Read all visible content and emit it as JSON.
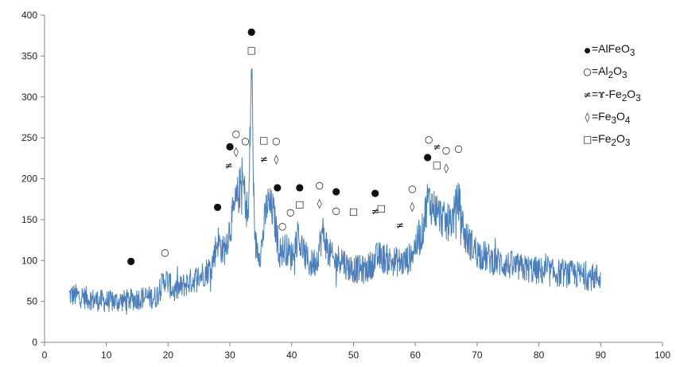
{
  "chart_data": {
    "type": "line",
    "title": "",
    "xlabel": "",
    "ylabel": "",
    "xlim": [
      0,
      100
    ],
    "ylim": [
      0,
      400
    ],
    "x_ticks": [
      "0",
      "10",
      "20",
      "30",
      "40",
      "50",
      "60",
      "70",
      "80",
      "90",
      "100"
    ],
    "y_ticks": [
      "0",
      "50",
      "100",
      "150",
      "200",
      "250",
      "300",
      "350",
      "400"
    ],
    "grid": false,
    "legend_position": "top-right",
    "line_color": "#4a7ebb",
    "series": [
      {
        "x": [
          4,
          6,
          8,
          10,
          12,
          14,
          16,
          18,
          19.5,
          21,
          23,
          25,
          27,
          28,
          29,
          30,
          31,
          32,
          33,
          33.5,
          34,
          35,
          36,
          37,
          38,
          39,
          40,
          41,
          42,
          43,
          44,
          45,
          46,
          47,
          48,
          49,
          50,
          52,
          54,
          56,
          58,
          59,
          60,
          61,
          62,
          63,
          64,
          65,
          66,
          67,
          68,
          70,
          72,
          74,
          76,
          78,
          80,
          82,
          84,
          86,
          88,
          90
        ],
        "y": [
          58,
          56,
          52,
          50,
          50,
          52,
          55,
          55,
          78,
          62,
          72,
          80,
          92,
          125,
          110,
          140,
          170,
          200,
          150,
          345,
          120,
          110,
          170,
          160,
          110,
          115,
          105,
          130,
          108,
          95,
          100,
          135,
          110,
          98,
          105,
          92,
          90,
          88,
          105,
          100,
          97,
          102,
          118,
          130,
          175,
          165,
          155,
          145,
          150,
          175,
          130,
          110,
          102,
          97,
          92,
          90,
          87,
          85,
          84,
          83,
          80,
          80
        ]
      }
    ],
    "annotations": [
      {
        "symbol": "●",
        "x": 14,
        "y": 100
      },
      {
        "symbol": "○",
        "x": 19.5,
        "y": 110
      },
      {
        "symbol": "●",
        "x": 28,
        "y": 166
      },
      {
        "symbol": "●",
        "x": 30,
        "y": 240
      },
      {
        "symbol": "≠",
        "x": 29.8,
        "y": 216
      },
      {
        "symbol": "○",
        "x": 31,
        "y": 255
      },
      {
        "symbol": "◊",
        "x": 31,
        "y": 233
      },
      {
        "symbol": "○",
        "x": 32.5,
        "y": 246
      },
      {
        "symbol": "●",
        "x": 33.5,
        "y": 380
      },
      {
        "symbol": "□",
        "x": 33.5,
        "y": 357
      },
      {
        "symbol": "□",
        "x": 35.5,
        "y": 247
      },
      {
        "symbol": "≠",
        "x": 35.5,
        "y": 224
      },
      {
        "symbol": "○",
        "x": 37.5,
        "y": 246
      },
      {
        "symbol": "◊",
        "x": 37.5,
        "y": 224
      },
      {
        "symbol": "●",
        "x": 37.7,
        "y": 190
      },
      {
        "symbol": "○",
        "x": 38.5,
        "y": 142
      },
      {
        "symbol": "○",
        "x": 39.8,
        "y": 159
      },
      {
        "symbol": "●",
        "x": 41.3,
        "y": 190
      },
      {
        "symbol": "□",
        "x": 41.3,
        "y": 169
      },
      {
        "symbol": "○",
        "x": 44.5,
        "y": 192
      },
      {
        "symbol": "◊",
        "x": 44.5,
        "y": 170
      },
      {
        "symbol": "●",
        "x": 47.2,
        "y": 185
      },
      {
        "symbol": "○",
        "x": 47.2,
        "y": 161
      },
      {
        "symbol": "□",
        "x": 50,
        "y": 160
      },
      {
        "symbol": "●",
        "x": 53.5,
        "y": 183
      },
      {
        "symbol": "≠",
        "x": 53.5,
        "y": 160
      },
      {
        "symbol": "□",
        "x": 54.5,
        "y": 164
      },
      {
        "symbol": "≠",
        "x": 57.5,
        "y": 143
      },
      {
        "symbol": "○",
        "x": 59.5,
        "y": 188
      },
      {
        "symbol": "◊",
        "x": 59.5,
        "y": 166
      },
      {
        "symbol": "○",
        "x": 62.2,
        "y": 248
      },
      {
        "symbol": "●",
        "x": 62,
        "y": 227
      },
      {
        "symbol": "≠",
        "x": 63.5,
        "y": 239
      },
      {
        "symbol": "□",
        "x": 63.5,
        "y": 217
      },
      {
        "symbol": "○",
        "x": 65,
        "y": 235
      },
      {
        "symbol": "◊",
        "x": 65,
        "y": 213
      },
      {
        "symbol": "○",
        "x": 67,
        "y": 237
      }
    ],
    "legend": [
      {
        "symbol": "●",
        "label": "=AlFeO",
        "sub": "3",
        "tail": ""
      },
      {
        "symbol": "○",
        "label": "=Al",
        "sub": "2",
        "tail": "O",
        "sub2": "3"
      },
      {
        "symbol": "≠",
        "label": "=ɤ-Fe",
        "sub": "2",
        "tail": "O",
        "sub2": "3"
      },
      {
        "symbol": "◊",
        "label": "=Fe",
        "sub": "3",
        "tail": "O",
        "sub2": "4"
      },
      {
        "symbol": "□",
        "label": "=Fe",
        "sub": "2",
        "tail": "O",
        "sub2": "3"
      }
    ]
  }
}
